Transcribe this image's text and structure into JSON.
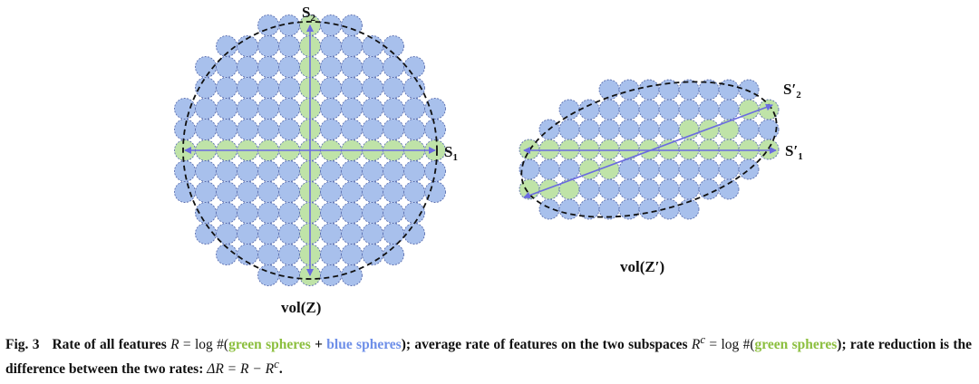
{
  "left": {
    "axis_s1": "S",
    "axis_s1_sub": "1",
    "axis_s2": "S",
    "axis_s2_sub": "2",
    "volume_label": "vol(Z)"
  },
  "right": {
    "axis_s1": "S′",
    "axis_s1_sub": "1",
    "axis_s2": "S′",
    "axis_s2_sub": "2",
    "volume_label": "vol(Z′)"
  },
  "caption": {
    "fig_number": "Fig. 3",
    "part1": "Rate of all features ",
    "R": "R",
    "eq1": " = log #(",
    "green1": "green spheres",
    "plus": " + ",
    "blue1": "blue spheres",
    "part2": "); average rate of features on the two subspaces ",
    "Rc": "R",
    "c": "c",
    "eq2": " = log #(",
    "green2": "green spheres",
    "part3": "); rate reduction is the difference between the two rates: ",
    "delta_expr": "ΔR = R − R",
    "c2": "c",
    "end": "."
  },
  "colors": {
    "blue_sphere": "#a8c0ec",
    "green_sphere": "#bfe3a8",
    "sphere_stroke": "#5b6fb0",
    "arrow": "#6a6be0"
  }
}
